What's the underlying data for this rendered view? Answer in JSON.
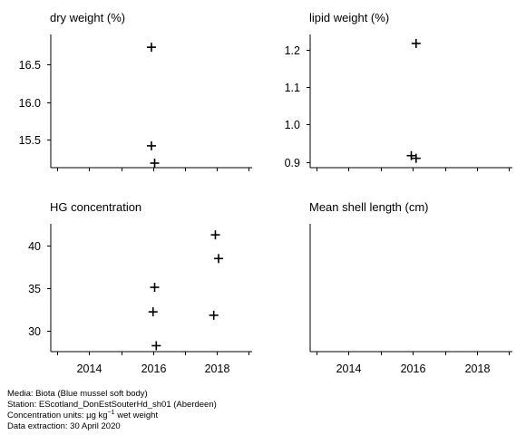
{
  "chart_data": [
    {
      "type": "scatter",
      "title": "dry weight (%)",
      "xlim": [
        2012.8,
        2019.1
      ],
      "ylim": [
        15.13,
        16.9
      ],
      "yticks": [
        15.5,
        16.0,
        16.5
      ],
      "ytick_labels": [
        "15.5",
        "16.0",
        "16.5"
      ],
      "xticks": [
        2013,
        2014,
        2015,
        2016,
        2017,
        2018,
        2019
      ],
      "xtick_labels": [],
      "points": [
        {
          "x": 2015.95,
          "y": 16.73
        },
        {
          "x": 2015.95,
          "y": 15.42
        },
        {
          "x": 2016.05,
          "y": 15.19
        }
      ]
    },
    {
      "type": "scatter",
      "title": "lipid weight (%)",
      "xlim": [
        2012.8,
        2019.1
      ],
      "ylim": [
        0.885,
        1.24
      ],
      "yticks": [
        0.9,
        1.0,
        1.1,
        1.2
      ],
      "ytick_labels": [
        "0.9",
        "1.0",
        "1.1",
        "1.2"
      ],
      "xticks": [
        2013,
        2014,
        2015,
        2016,
        2017,
        2018,
        2019
      ],
      "xtick_labels": [],
      "points": [
        {
          "x": 2016.1,
          "y": 1.216
        },
        {
          "x": 2015.95,
          "y": 0.917
        },
        {
          "x": 2016.1,
          "y": 0.91
        }
      ]
    },
    {
      "type": "scatter",
      "title": "HG concentration",
      "xlim": [
        2012.8,
        2019.1
      ],
      "ylim": [
        27.5,
        42.6
      ],
      "yticks": [
        30,
        35,
        40
      ],
      "ytick_labels": [
        "30",
        "35",
        "40"
      ],
      "xticks": [
        2013,
        2014,
        2015,
        2016,
        2017,
        2018,
        2019
      ],
      "xtick_labels": [
        "",
        "2014",
        "",
        "2016",
        "",
        "2018",
        ""
      ],
      "points": [
        {
          "x": 2017.95,
          "y": 41.3
        },
        {
          "x": 2018.05,
          "y": 38.5
        },
        {
          "x": 2016.05,
          "y": 35.1
        },
        {
          "x": 2016.0,
          "y": 32.2
        },
        {
          "x": 2017.9,
          "y": 31.8
        },
        {
          "x": 2016.1,
          "y": 28.2
        }
      ]
    },
    {
      "type": "scatter",
      "title": "Mean shell length (cm)",
      "xlim": [
        2012.8,
        2019.1
      ],
      "yticks": [],
      "ytick_labels": [],
      "xticks": [
        2013,
        2014,
        2015,
        2016,
        2017,
        2018,
        2019
      ],
      "xtick_labels": [
        "",
        "2014",
        "",
        "2016",
        "",
        "2018",
        ""
      ],
      "points": []
    }
  ],
  "footer": [
    "Media: Biota (Blue mussel soft body)",
    "Station: EScotland_DonEstSouterHd_sh01 (Aberdeen)",
    "Concentration units: µg kg",
    "Data extraction: 30 April 2020"
  ],
  "units_exponent": "−1",
  "units_suffix": " wet weight"
}
